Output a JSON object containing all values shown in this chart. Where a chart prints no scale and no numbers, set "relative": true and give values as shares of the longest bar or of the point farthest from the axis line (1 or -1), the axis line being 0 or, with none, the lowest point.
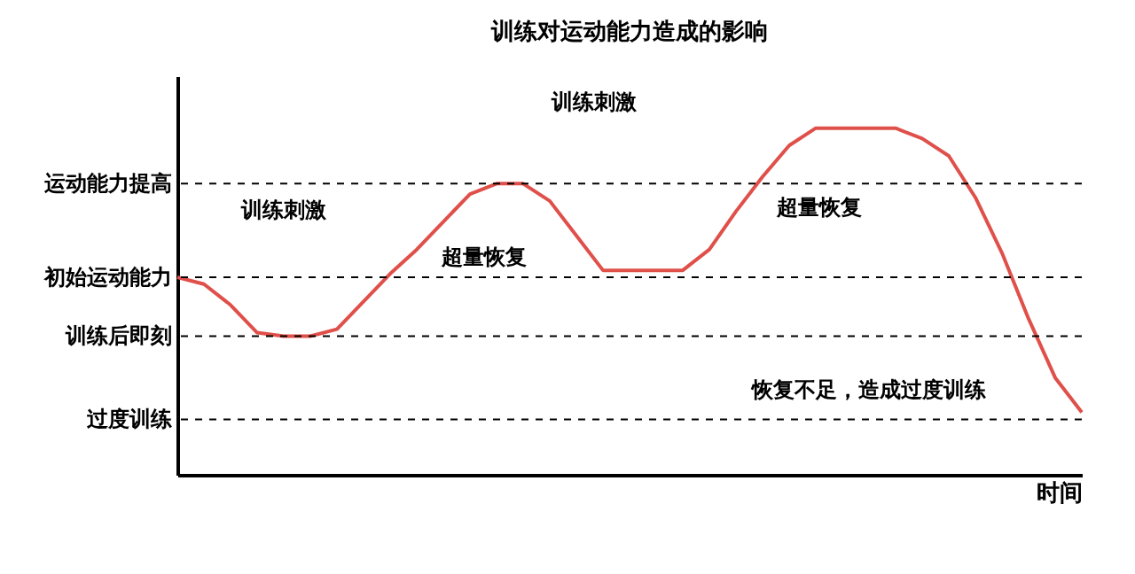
{
  "chart_data": {
    "type": "line",
    "title": "训练对运动能力造成的影响",
    "xlabel": "时间",
    "relative": true,
    "line_style": "solid",
    "categories": [
      null,
      null,
      null,
      null,
      null,
      null,
      null,
      null,
      null,
      null,
      null,
      null,
      null,
      null,
      null,
      null,
      null,
      null,
      null,
      null,
      null,
      null,
      null,
      null,
      null,
      null,
      null,
      null,
      null,
      null,
      null,
      null,
      null,
      null,
      null
    ],
    "series": [
      {
        "color": "#e0504a",
        "values": [
          0.57,
          0.55,
          0.49,
          0.41,
          0.4,
          0.4,
          0.42,
          0.5,
          0.58,
          0.65,
          0.73,
          0.81,
          0.84,
          0.84,
          0.79,
          0.69,
          0.59,
          0.59,
          0.59,
          0.59,
          0.65,
          0.76,
          0.86,
          0.95,
          1,
          1,
          1,
          1,
          0.97,
          0.92,
          0.8,
          0.64,
          0.45,
          0.28,
          0.18
        ]
      }
    ],
    "ref_lines": [
      {
        "axis": "y",
        "value": 0.84,
        "label": "运动能力提高",
        "line_style": "dashed"
      },
      {
        "axis": "y",
        "value": 0.57,
        "label": "初始运动能力",
        "line_style": "dashed"
      },
      {
        "axis": "y",
        "value": 0.4,
        "label": "训练后即刻",
        "line_style": "dashed"
      },
      {
        "axis": "y",
        "value": 0.16,
        "label": "过度训练",
        "line_style": "dashed"
      }
    ],
    "annotations": [
      "训练刺激",
      "训练刺激",
      "超量恢复",
      "超量恢复",
      "恢复不足，造成过度训练"
    ]
  }
}
